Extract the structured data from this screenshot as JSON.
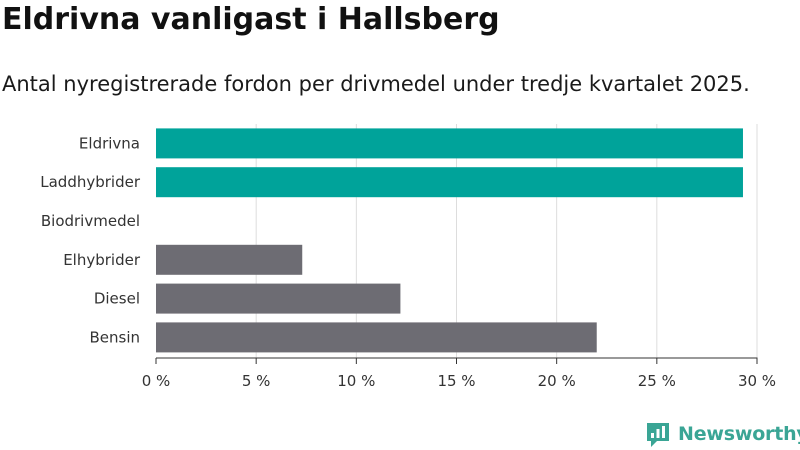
{
  "title": "Eldrivna vanligast i Hallsberg",
  "subtitle": "Antal nyregistrerade fordon per drivmedel under tredje kvartalet 2025.",
  "logo": {
    "icon": "newsworthy-logo-icon",
    "text": "Newsworthy",
    "color": "#3aa595"
  },
  "chart_data": {
    "type": "bar",
    "orientation": "horizontal",
    "categories": [
      "Eldrivna",
      "Laddhybrider",
      "Biodrivmedel",
      "Elhybrider",
      "Diesel",
      "Bensin"
    ],
    "values": [
      29.3,
      29.3,
      0,
      7.3,
      12.2,
      22.0
    ],
    "colors": [
      "#00a39a",
      "#00a39a",
      "#00a39a",
      "#6d6c73",
      "#6d6c73",
      "#6d6c73"
    ],
    "xlim": [
      0,
      30
    ],
    "xticks": [
      0,
      5,
      10,
      15,
      20,
      25,
      30
    ],
    "xtick_labels": [
      "0 %",
      "5 %",
      "10 %",
      "15 %",
      "20 %",
      "25 %",
      "30 %"
    ],
    "grid": true,
    "gridline_color": "#dddddd",
    "axis_color": "#333333"
  }
}
